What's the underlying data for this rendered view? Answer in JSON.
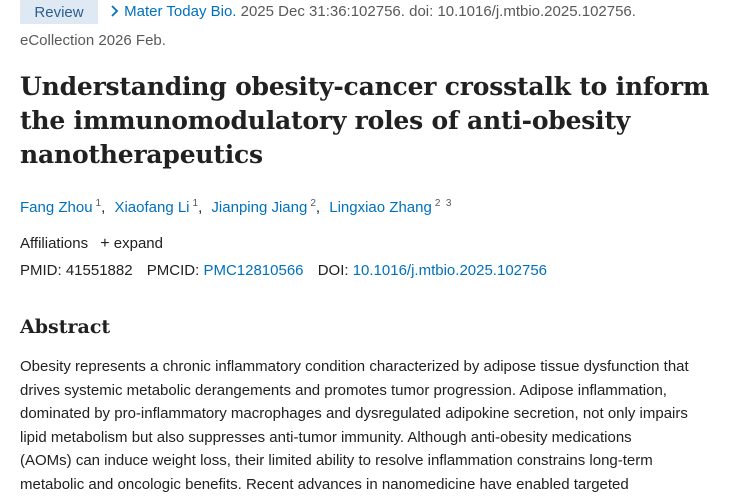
{
  "article_type_badge": "Review",
  "citation": {
    "line1_link": "Mater Today Bio.",
    "line1_rest": "2025 Dec 31:36:102756. doi: 10.1016/j.mtbio.2025.102756.",
    "line2": "eCollection 2026 Feb."
  },
  "title_lines": [
    "Understanding obesity-cancer crosstalk to inform",
    "the immunomodulatory roles of anti-obesity",
    "nanotherapeutics"
  ],
  "authors": [
    {
      "name": "Fang Zhou",
      "affils": "1"
    },
    {
      "name": "Xiaofang Li",
      "affils": "1"
    },
    {
      "name": "Jianping Jiang",
      "affils": "2"
    },
    {
      "name": "Lingxiao Zhang",
      "affils": "2  3"
    }
  ],
  "affiliations": {
    "label": "Affiliations",
    "expand_label": "expand"
  },
  "identifiers": {
    "pmid_label": "PMID:",
    "pmid": "41551882",
    "pmcid_label": "PMCID:",
    "pmcid": "PMC12810566",
    "doi_label": "DOI:",
    "doi": "10.1016/j.mtbio.2025.102756"
  },
  "abstract": {
    "heading": "Abstract",
    "lines": [
      "Obesity represents a chronic inflammatory condition characterized by adipose tissue dysfunction that",
      "drives systemic metabolic derangements and promotes tumor progression. Adipose inflammation,",
      "dominated by pro-inflammatory macrophages and dysregulated adipokine secretion, not only impairs",
      "lipid metabolism but also suppresses anti-tumor immunity. Although anti-obesity medications",
      "(AOMs) can induce weight loss, their limited ability to resolve inflammation constrains long-term",
      "metabolic and oncologic benefits. Recent advances in nanomedicine have enabled targeted"
    ]
  },
  "colors": {
    "link": "#0071bc",
    "badge_bg": "#dfe9f3",
    "text": "#212121"
  }
}
